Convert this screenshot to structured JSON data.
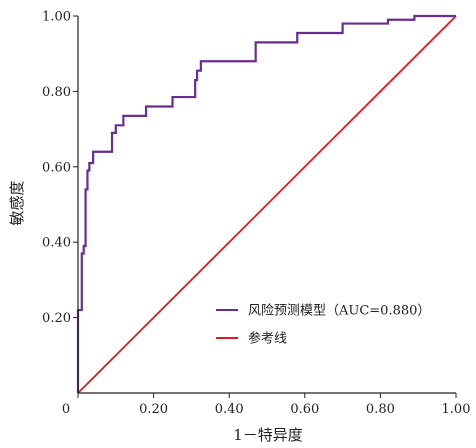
{
  "chart_data": {
    "type": "line",
    "xlabel": "1－特异度",
    "ylabel": "敏感度",
    "xlim": [
      0,
      1
    ],
    "ylim": [
      0,
      1
    ],
    "x_ticks": [
      "0",
      "0.20",
      "0.40",
      "0.60",
      "0.80",
      "1.00"
    ],
    "x_tick_values": [
      0,
      0.2,
      0.4,
      0.6,
      0.8,
      1.0
    ],
    "y_ticks": [
      "0.20",
      "0.40",
      "0.60",
      "0.80",
      "1.00"
    ],
    "y_tick_values": [
      0.2,
      0.4,
      0.6,
      0.8,
      1.0
    ],
    "grid": false,
    "legend_position": "bottom-right",
    "series": [
      {
        "name": "风险预测模型（AUC=0.880）",
        "color": "#6a2c91",
        "style": "step",
        "x": [
          0.0,
          0.0,
          0.01,
          0.01,
          0.015,
          0.015,
          0.02,
          0.02,
          0.025,
          0.025,
          0.03,
          0.03,
          0.04,
          0.04,
          0.05,
          0.05,
          0.09,
          0.09,
          0.1,
          0.1,
          0.12,
          0.12,
          0.18,
          0.18,
          0.25,
          0.25,
          0.31,
          0.31,
          0.315,
          0.315,
          0.325,
          0.325,
          0.34,
          0.34,
          0.47,
          0.47,
          0.58,
          0.58,
          0.65,
          0.65,
          0.7,
          0.7,
          0.82,
          0.82,
          0.89,
          0.89,
          1.0
        ],
        "y": [
          0.0,
          0.22,
          0.22,
          0.37,
          0.37,
          0.39,
          0.39,
          0.54,
          0.54,
          0.59,
          0.59,
          0.61,
          0.61,
          0.64,
          0.64,
          0.64,
          0.64,
          0.69,
          0.69,
          0.71,
          0.71,
          0.735,
          0.735,
          0.76,
          0.76,
          0.785,
          0.785,
          0.83,
          0.83,
          0.855,
          0.855,
          0.88,
          0.88,
          0.88,
          0.88,
          0.93,
          0.93,
          0.955,
          0.955,
          0.955,
          0.955,
          0.98,
          0.98,
          0.99,
          0.99,
          1.0,
          1.0
        ]
      },
      {
        "name": "参考线",
        "color": "#e0191e",
        "style": "line",
        "x": [
          0,
          1
        ],
        "y": [
          0,
          1
        ]
      }
    ]
  }
}
